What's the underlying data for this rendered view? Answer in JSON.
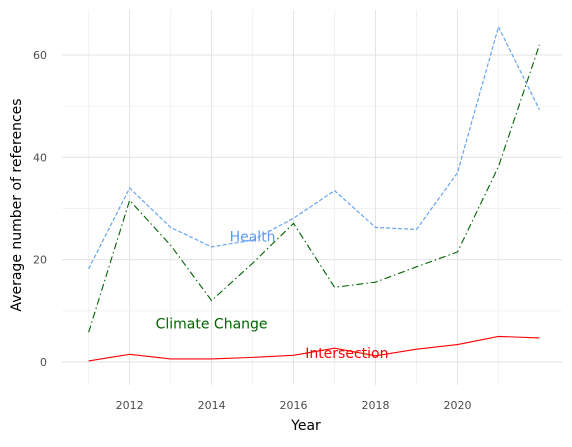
{
  "chart_data": {
    "type": "line",
    "xlabel": "Year",
    "ylabel": "Average number of references",
    "xlim": [
      2010.35,
      2022.55
    ],
    "ylim": [
      -4.5,
      68.8
    ],
    "x_ticks": [
      2012,
      2014,
      2016,
      2018,
      2020
    ],
    "x_tick_labels": [
      "2012",
      "2014",
      "2016",
      "2018",
      "2020"
    ],
    "y_ticks": [
      0,
      20,
      40,
      60
    ],
    "y_tick_labels": [
      "0",
      "20",
      "40",
      "60"
    ],
    "grid": true,
    "legend": "none",
    "series": [
      {
        "name": "Health",
        "color": "#5b9cf0",
        "dash": "dashed",
        "x": [
          2011,
          2012,
          2013,
          2014,
          2015,
          2016,
          2017,
          2018,
          2019,
          2020,
          2021,
          2022
        ],
        "y": [
          18.2,
          34.0,
          26.3,
          22.5,
          23.8,
          28.1,
          33.5,
          26.3,
          25.9,
          37.0,
          65.5,
          49.3
        ]
      },
      {
        "name": "Climate Change",
        "color": "#006400",
        "dash": "dashdot",
        "x": [
          2011,
          2012,
          2013,
          2014,
          2015,
          2016,
          2017,
          2018,
          2019,
          2020,
          2021,
          2022
        ],
        "y": [
          5.8,
          31.6,
          22.8,
          12.0,
          19.3,
          27.1,
          14.6,
          15.6,
          18.6,
          21.5,
          38.2,
          62.0
        ]
      },
      {
        "name": "Intersection",
        "color": "#ff0000",
        "dash": "solid",
        "x": [
          2011,
          2012,
          2013,
          2014,
          2015,
          2016,
          2017,
          2018,
          2019,
          2020,
          2021,
          2022
        ],
        "y": [
          0.2,
          1.5,
          0.6,
          0.6,
          0.9,
          1.3,
          2.7,
          1.2,
          2.5,
          3.4,
          5.0,
          4.7
        ]
      }
    ],
    "annotations": [
      {
        "text": "Health",
        "x": 2015.0,
        "y": 24.5,
        "color": "#5b9cf0"
      },
      {
        "text": "Climate Change",
        "x": 2014.0,
        "y": 7.5,
        "color": "#006400"
      },
      {
        "text": "Intersection",
        "x": 2017.3,
        "y": 1.8,
        "color": "#ff0000"
      }
    ]
  }
}
